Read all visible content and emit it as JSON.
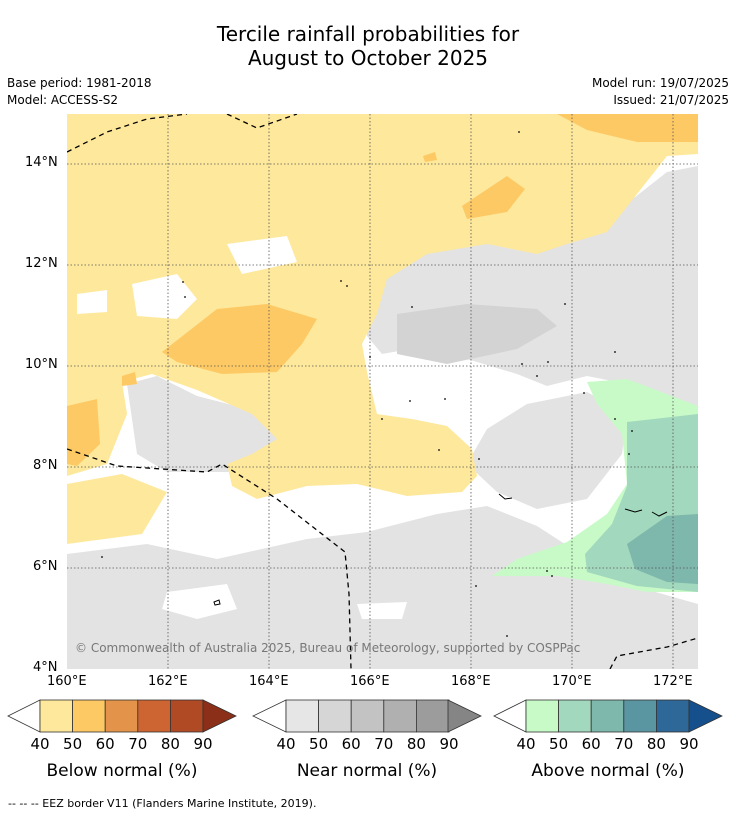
{
  "title_line1": "Tercile rainfall probabilities for",
  "title_line2": "August to October 2025",
  "base_period": "Base period: 1981-2018",
  "model": "Model: ACCESS-S2",
  "model_run": "Model run: 19/07/2025",
  "issued": "Issued: 21/07/2025",
  "copyright": "© Commonwealth of Australia 2025, Bureau of Meteorology, supported by COSPPac",
  "footnote": "-- -- -- EEZ border V11 (Flanders Marine Institute, 2019).",
  "lat_labels": [
    "14°N",
    "12°N",
    "10°N",
    "8°N",
    "6°N",
    "4°N"
  ],
  "lon_labels": [
    "160°E",
    "162°E",
    "164°E",
    "166°E",
    "168°E",
    "170°E",
    "172°E"
  ],
  "colorbars": {
    "below": {
      "label": "Below normal (%)",
      "ticks": [
        "40",
        "50",
        "60",
        "70",
        "80",
        "90"
      ],
      "colors": [
        "#fee89c",
        "#fdc964",
        "#e4944a",
        "#cd6532",
        "#b04a24",
        "#8b2f18"
      ]
    },
    "near": {
      "label": "Near normal (%)",
      "ticks": [
        "40",
        "50",
        "60",
        "70",
        "80",
        "90"
      ],
      "colors": [
        "#e6e6e6",
        "#d6d6d6",
        "#c3c3c3",
        "#b0b0b0",
        "#9c9c9c",
        "#858585"
      ]
    },
    "above": {
      "label": "Above normal (%)",
      "ticks": [
        "40",
        "50",
        "60",
        "70",
        "80",
        "90"
      ],
      "colors": [
        "#c8fac8",
        "#a2d8bd",
        "#7eb7ab",
        "#5a95a2",
        "#2e6898",
        "#154f8c"
      ]
    }
  }
}
